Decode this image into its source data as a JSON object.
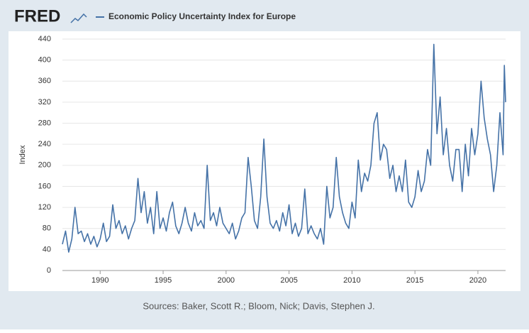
{
  "header": {
    "logo": "FRED"
  },
  "chart_data": {
    "type": "line",
    "y_axis_label": "Index",
    "source": "Sources: Baker, Scott R.; Bloom, Nick; Davis, Stephen J.",
    "xlim": [
      1987,
      2022.2
    ],
    "xticks": [
      1990,
      1995,
      2000,
      2005,
      2010,
      2015,
      2020
    ],
    "ylim": [
      0,
      440
    ],
    "yticks": [
      0,
      40,
      80,
      120,
      160,
      200,
      240,
      280,
      320,
      360,
      400,
      440
    ],
    "grid": true,
    "series": [
      {
        "name": "Economic Policy Uncertainty Index for Europe",
        "color": "#4572a7",
        "x": [
          1987,
          1987.25,
          1987.5,
          1987.75,
          1988,
          1988.25,
          1988.5,
          1988.75,
          1989,
          1989.25,
          1989.5,
          1989.75,
          1990,
          1990.25,
          1990.5,
          1990.75,
          1991,
          1991.25,
          1991.5,
          1991.75,
          1992,
          1992.25,
          1992.5,
          1992.75,
          1993,
          1993.25,
          1993.5,
          1993.75,
          1994,
          1994.25,
          1994.5,
          1994.75,
          1995,
          1995.25,
          1995.5,
          1995.75,
          1996,
          1996.25,
          1996.5,
          1996.75,
          1997,
          1997.25,
          1997.5,
          1997.75,
          1998,
          1998.25,
          1998.5,
          1998.75,
          1999,
          1999.25,
          1999.5,
          1999.75,
          2000,
          2000.25,
          2000.5,
          2000.75,
          2001,
          2001.25,
          2001.5,
          2001.75,
          2002,
          2002.25,
          2002.5,
          2002.75,
          2003,
          2003.25,
          2003.5,
          2003.75,
          2004,
          2004.25,
          2004.5,
          2004.75,
          2005,
          2005.25,
          2005.5,
          2005.75,
          2006,
          2006.25,
          2006.5,
          2006.75,
          2007,
          2007.25,
          2007.5,
          2007.75,
          2008,
          2008.25,
          2008.5,
          2008.75,
          2009,
          2009.25,
          2009.5,
          2009.75,
          2010,
          2010.25,
          2010.5,
          2010.75,
          2011,
          2011.25,
          2011.5,
          2011.75,
          2012,
          2012.25,
          2012.5,
          2012.75,
          2013,
          2013.25,
          2013.5,
          2013.75,
          2014,
          2014.25,
          2014.5,
          2014.75,
          2015,
          2015.25,
          2015.5,
          2015.75,
          2016,
          2016.25,
          2016.5,
          2016.75,
          2017,
          2017.25,
          2017.5,
          2017.75,
          2018,
          2018.25,
          2018.5,
          2018.75,
          2019,
          2019.25,
          2019.5,
          2019.75,
          2020,
          2020.25,
          2020.5,
          2020.75,
          2021,
          2021.25,
          2021.5,
          2021.75,
          2022,
          2022.1,
          2022.2
        ],
        "values": [
          50,
          75,
          35,
          60,
          120,
          70,
          75,
          55,
          70,
          50,
          65,
          45,
          60,
          90,
          55,
          65,
          125,
          80,
          95,
          70,
          85,
          60,
          80,
          95,
          175,
          110,
          150,
          90,
          120,
          70,
          150,
          80,
          100,
          75,
          110,
          130,
          85,
          70,
          90,
          120,
          90,
          75,
          110,
          85,
          95,
          80,
          200,
          95,
          110,
          85,
          120,
          90,
          80,
          70,
          90,
          60,
          75,
          100,
          110,
          215,
          160,
          95,
          80,
          140,
          250,
          140,
          90,
          80,
          95,
          75,
          110,
          85,
          125,
          70,
          90,
          65,
          80,
          155,
          70,
          85,
          70,
          60,
          80,
          50,
          160,
          100,
          120,
          215,
          140,
          110,
          90,
          80,
          130,
          100,
          210,
          150,
          185,
          170,
          200,
          280,
          300,
          210,
          240,
          230,
          175,
          200,
          150,
          180,
          150,
          210,
          130,
          120,
          140,
          190,
          150,
          170,
          230,
          200,
          430,
          260,
          330,
          220,
          270,
          200,
          170,
          230,
          230,
          150,
          240,
          180,
          270,
          220,
          260,
          360,
          290,
          250,
          220,
          150,
          200,
          300,
          220,
          390,
          320
        ]
      }
    ]
  }
}
